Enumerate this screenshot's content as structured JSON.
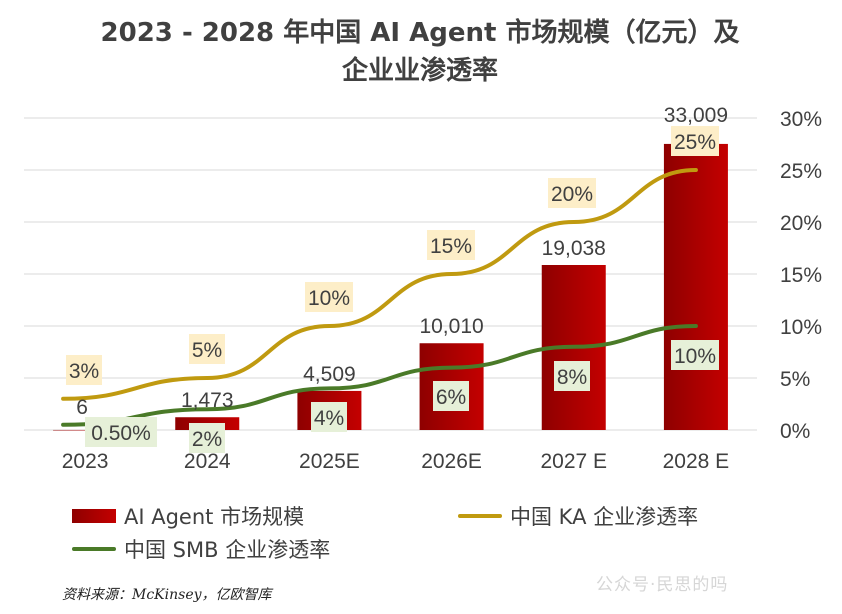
{
  "title_line1": "2023 - 2028 年中国 AI Agent 市场规模（亿元）及",
  "title_line2": "企业业渗透率",
  "source": "资料来源：McKinsey，亿欧智库",
  "watermark": "公众号·民思的吗",
  "colors": {
    "bar_dark": "#8e0000",
    "bar_light": "#c40000",
    "ka_line": "#c09a10",
    "smb_line": "#4a7a28",
    "ka_label_bg": "#fdeec8",
    "smb_label_bg": "#e6f0d8",
    "grid": "#d9d9d9",
    "text": "#404040"
  },
  "chart_data": {
    "type": "bar+line",
    "categories": [
      "2023",
      "2024",
      "2025E",
      "2026E",
      "2027 E",
      "2028  E"
    ],
    "bar_series": {
      "name": "AI Agent 市场规模",
      "values": [
        6,
        1473,
        4509,
        10010,
        19038,
        33009
      ],
      "labels": [
        "6",
        "1,473",
        "4,509",
        "10,010",
        "19,038",
        "33,009"
      ]
    },
    "line_series": [
      {
        "name": "中国 KA 企业渗透率",
        "values": [
          3,
          5,
          10,
          15,
          20,
          25
        ],
        "labels": [
          "3%",
          "5%",
          "10%",
          "15%",
          "20%",
          "25%"
        ]
      },
      {
        "name": "中国 SMB 企业渗透率",
        "values": [
          0.5,
          2,
          4,
          6,
          8,
          10
        ],
        "labels": [
          "0.50%",
          "2%",
          "4%",
          "6%",
          "8%",
          "10%"
        ]
      }
    ],
    "y_left_lim": [
      0,
      36000
    ],
    "y_right_lim": [
      0,
      30
    ],
    "y_right_ticks": [
      "0%",
      "5%",
      "10%",
      "15%",
      "20%",
      "25%",
      "30%"
    ],
    "grid": true,
    "legend": "bottom"
  }
}
